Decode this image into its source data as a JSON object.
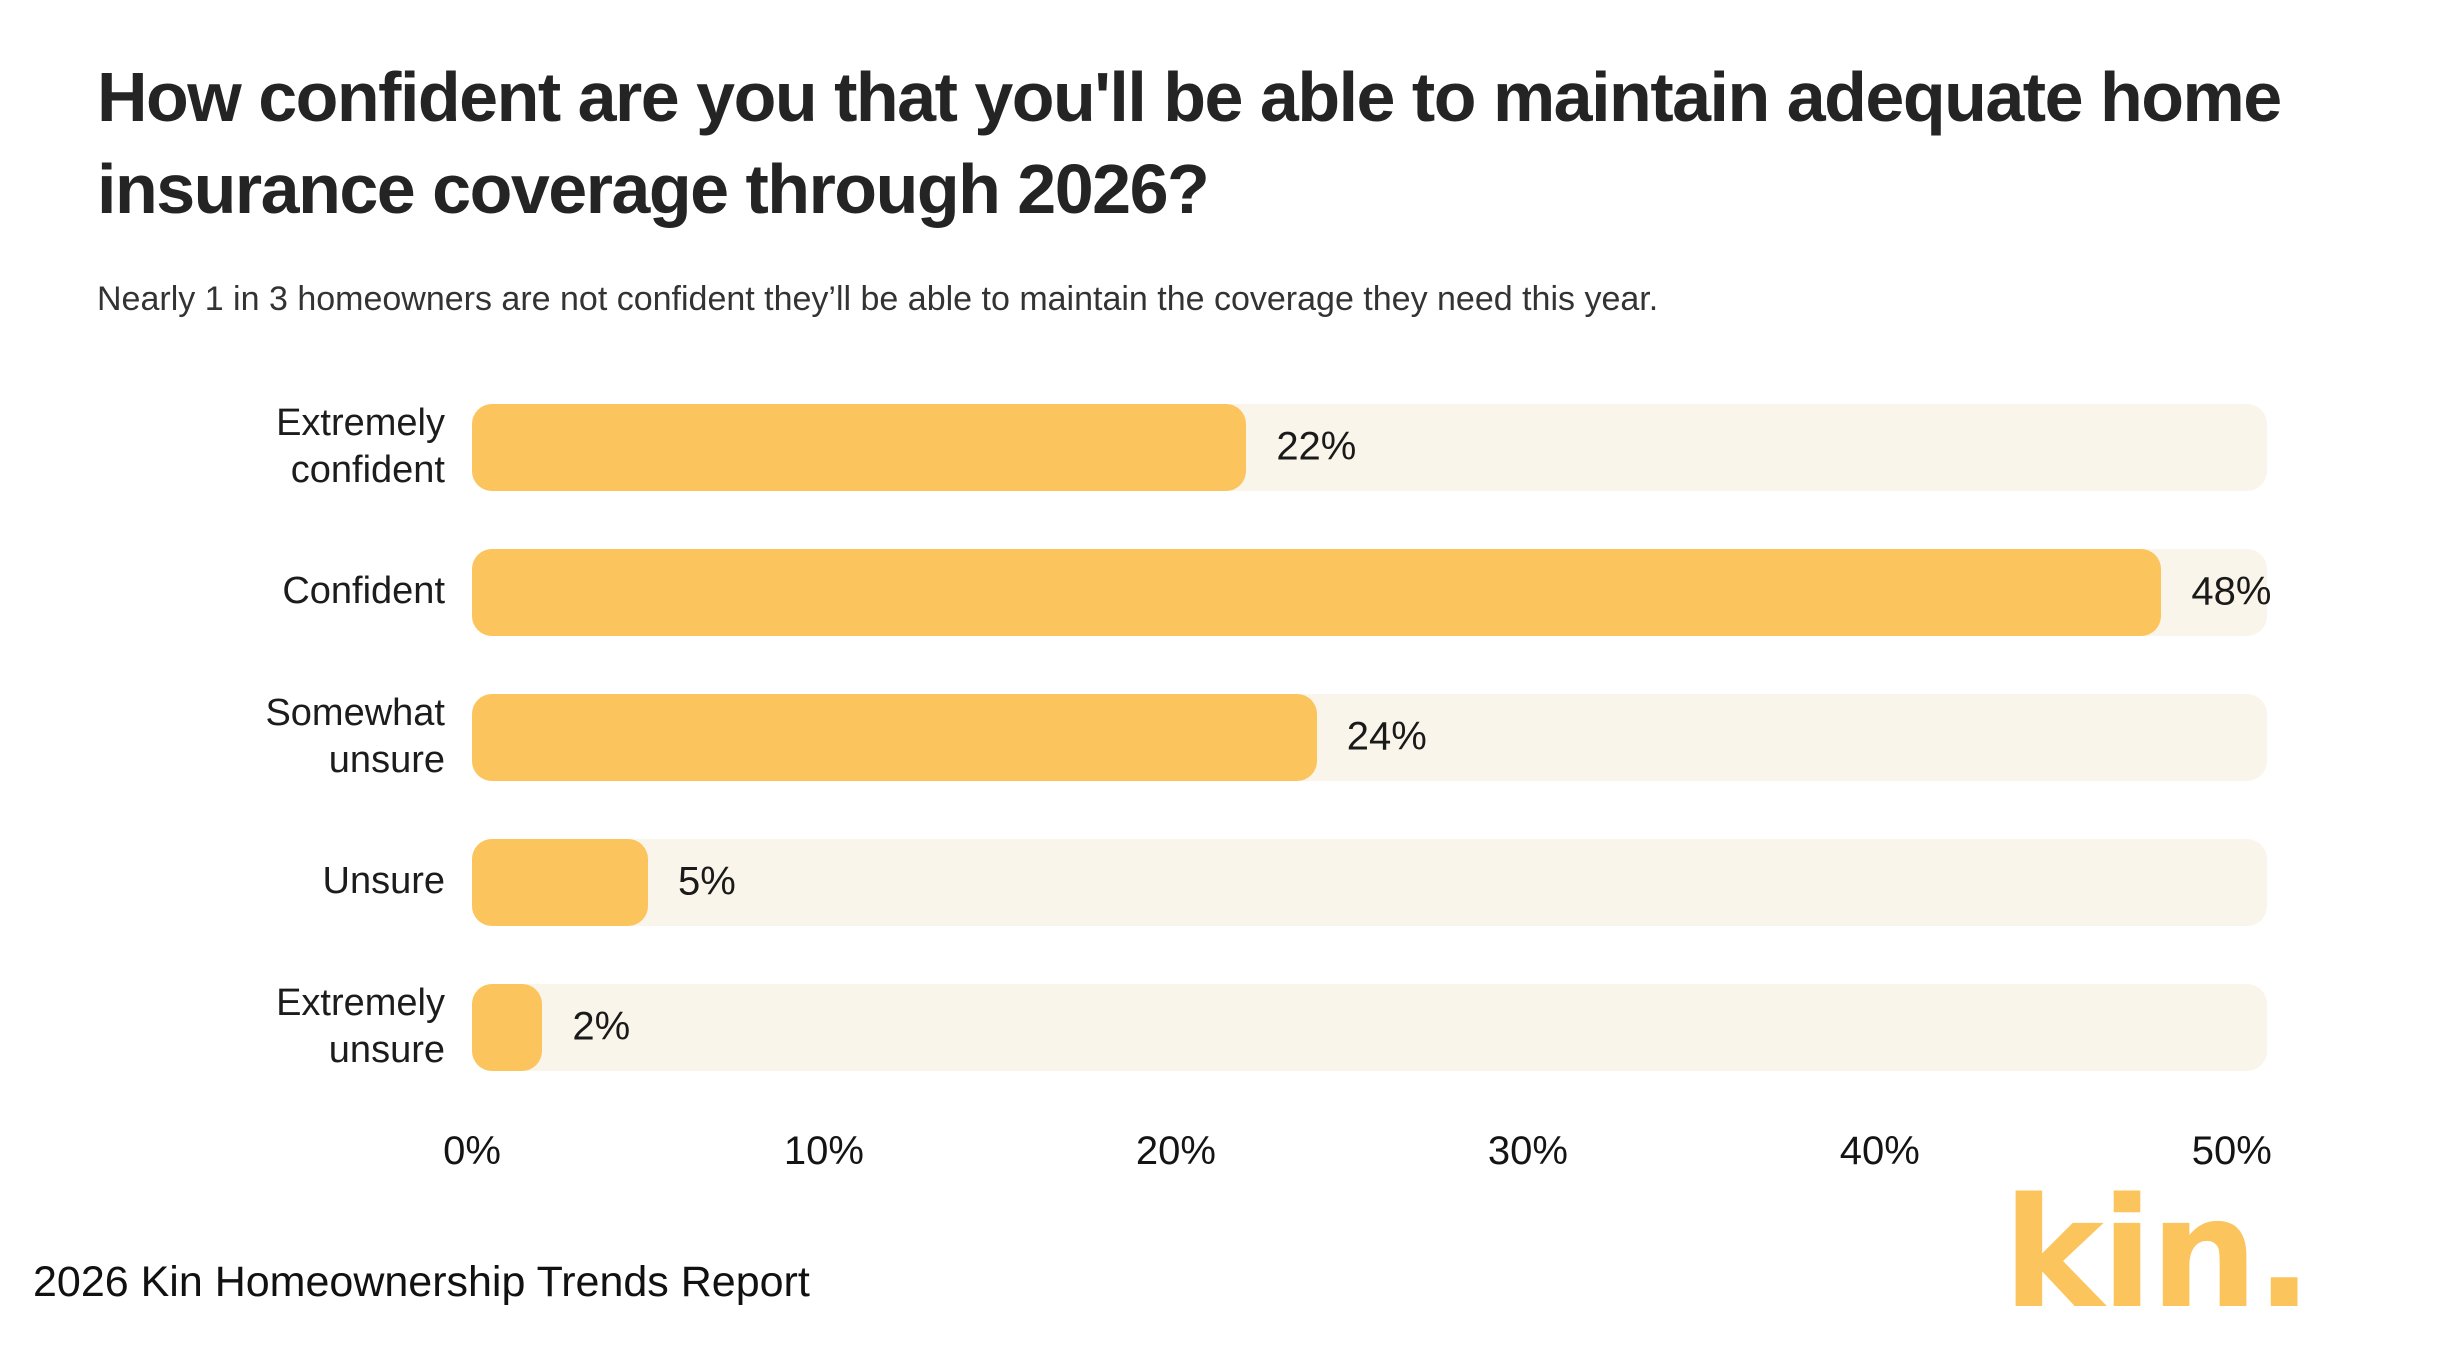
{
  "title": "How confident are you that you'll be able to maintain adequate home insurance coverage through 2026?",
  "subtitle": "Nearly 1 in 3 homeowners are not confident they’ll be able to maintain the coverage they need this year.",
  "footer": {
    "source_label": "2026 Kin Homeownership Trends Report",
    "brand_logo": "kin."
  },
  "colors": {
    "bar_fill": "#FCC45C",
    "bar_track": "#FAF5EA",
    "title_text": "#242424",
    "logo_yellow": "#FBC45C",
    "background": "#FFFFFF"
  },
  "chart_data": {
    "type": "bar",
    "orientation": "horizontal",
    "title": "How confident are you that you'll be able to maintain adequate home insurance coverage through 2026?",
    "subtitle": "Nearly 1 in 3 homeowners are not confident they’ll be able to maintain the coverage they need this year.",
    "categories": [
      "Extremely confident",
      "Confident",
      "Somewhat unsure",
      "Unsure",
      "Extremely unsure"
    ],
    "values": [
      22,
      48,
      24,
      5,
      2
    ],
    "value_labels": [
      "22%",
      "48%",
      "24%",
      "5%",
      "2%"
    ],
    "x_ticks": [
      "0%",
      "10%",
      "20%",
      "30%",
      "40%",
      "50%"
    ],
    "x_tick_values": [
      0,
      10,
      20,
      30,
      40,
      50
    ],
    "xlim": [
      0,
      51
    ],
    "xlabel": "",
    "ylabel": "",
    "grid": false,
    "legend": false
  }
}
